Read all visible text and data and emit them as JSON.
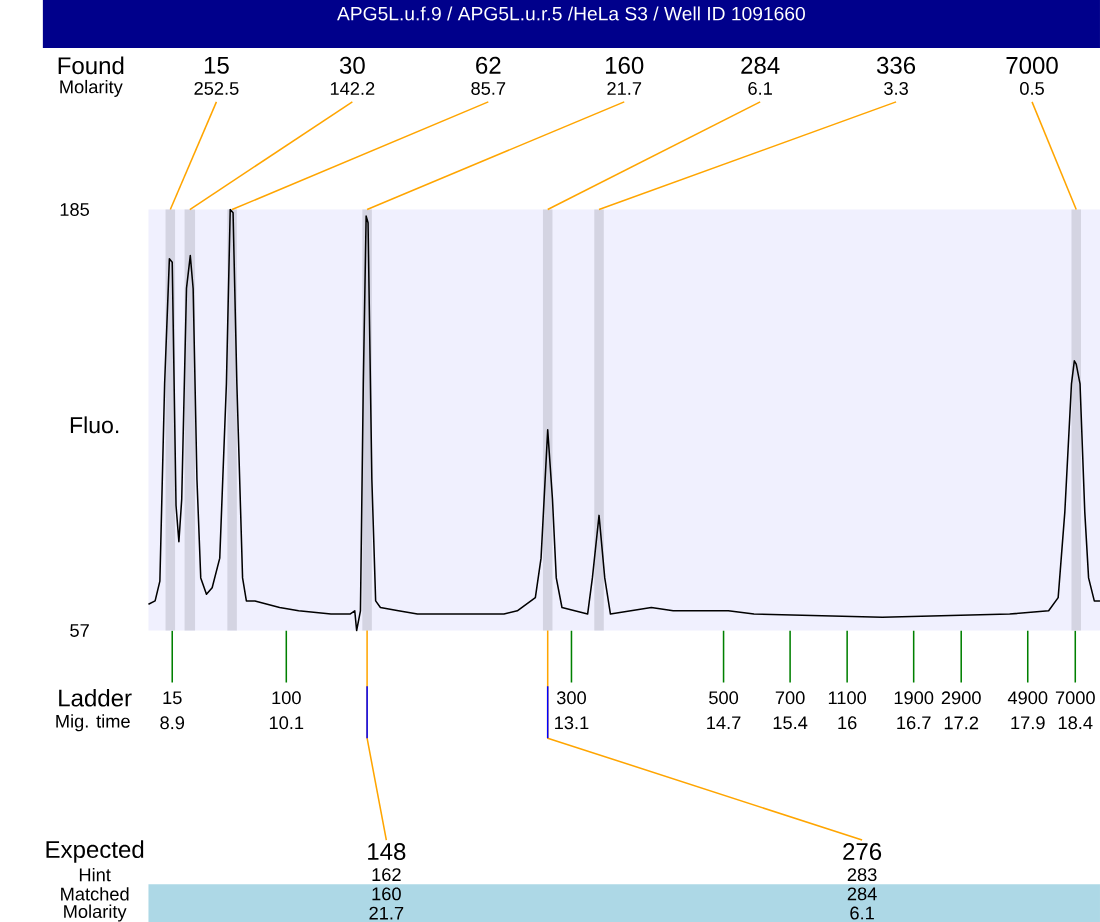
{
  "chart_data": {
    "type": "line",
    "title": "APG5L.u.f.9 / APG5L.u.r.5 /HeLa S3 / Well ID 1091660",
    "ylabel": "Fluo.",
    "x": [
      8.65,
      8.72,
      8.77,
      8.82,
      8.87,
      8.9,
      8.94,
      8.97,
      9.0,
      9.05,
      9.09,
      9.12,
      9.16,
      9.2,
      9.26,
      9.32,
      9.4,
      9.47,
      9.51,
      9.54,
      9.58,
      9.64,
      9.68,
      9.77,
      10.03,
      10.23,
      10.57,
      10.77,
      10.82,
      10.84,
      10.88,
      10.91,
      10.94,
      10.96,
      11.0,
      11.04,
      11.09,
      11.28,
      11.48,
      12.39,
      12.53,
      12.72,
      12.78,
      12.85,
      12.9,
      12.94,
      13.0,
      13.27,
      13.32,
      13.39,
      13.45,
      13.51,
      13.94,
      14.17,
      14.57,
      14.75,
      15.02,
      16.37,
      17.71,
      18.12,
      18.22,
      18.29,
      18.36,
      18.39,
      18.41,
      18.45,
      18.5,
      18.54,
      18.6,
      18.66
    ],
    "values": [
      65,
      66,
      72,
      132,
      170,
      169,
      95,
      84,
      97,
      161,
      171,
      161,
      103,
      73,
      68,
      70,
      79,
      132,
      185,
      184,
      132,
      73,
      66,
      66,
      64,
      63,
      62,
      62,
      63,
      57,
      63,
      132,
      183,
      181,
      103,
      66,
      64,
      63,
      62,
      62,
      63,
      67,
      79,
      118,
      97,
      73,
      64,
      62,
      73,
      92,
      73,
      62,
      64,
      63,
      63,
      63,
      62,
      61,
      62,
      63,
      67,
      93,
      132,
      139,
      138,
      132,
      93,
      73,
      66,
      66
    ],
    "color": "#000000",
    "xlim": [
      8.65,
      18.66
    ],
    "ylim": [
      57,
      185
    ],
    "xticks": [
      8.9,
      10.1,
      13.1,
      14.7,
      15.4,
      16,
      16.7,
      17.2,
      17.9,
      18.4
    ],
    "yticks": [
      57,
      185
    ],
    "bands": [
      {
        "axis": "x",
        "from": 8.83,
        "to": 8.93,
        "label": "15",
        "color": "#D4D4E2"
      },
      {
        "axis": "x",
        "from": 9.03,
        "to": 9.14,
        "label": "30",
        "color": "#D4D4E2"
      },
      {
        "axis": "x",
        "from": 9.48,
        "to": 9.58,
        "label": "62",
        "color": "#D4D4E2"
      },
      {
        "axis": "x",
        "from": 10.9,
        "to": 11.0,
        "label": "160",
        "color": "#D4D4E2"
      },
      {
        "axis": "x",
        "from": 12.8,
        "to": 12.9,
        "label": "284",
        "color": "#D4D4E2"
      },
      {
        "axis": "x",
        "from": 13.34,
        "to": 13.44,
        "label": "336",
        "color": "#D4D4E2"
      },
      {
        "axis": "x",
        "from": 18.36,
        "to": 18.46,
        "label": "7000",
        "color": "#D4D4E2"
      }
    ],
    "annotations": [
      "Found",
      "Molarity",
      {
        "text": "252.5",
        "x": 8.88,
        "y": 185
      },
      {
        "text": "142.2",
        "x": 9.085,
        "y": 185
      },
      {
        "text": "85.7",
        "x": 9.53,
        "y": 185
      },
      {
        "text": "21.7",
        "x": 10.95,
        "y": 185
      },
      {
        "text": "6.1",
        "x": 12.85,
        "y": 185
      },
      {
        "text": "3.3",
        "x": 13.39,
        "y": 185
      },
      {
        "text": "0.5",
        "x": 18.41,
        "y": 185
      },
      "Ladder",
      "Mig. time",
      "15",
      "100",
      "300",
      "500",
      "700",
      "1100",
      "1900",
      "2900",
      "4900",
      "7000",
      "Expected",
      "Hint",
      "Matched",
      "Molarity",
      {
        "text": "148",
        "x": 10.95,
        "y": 57
      },
      {
        "text": "276",
        "x": 12.85,
        "y": 57
      },
      "162",
      "283",
      "160",
      "284",
      "21.7",
      "6.1"
    ]
  }
}
